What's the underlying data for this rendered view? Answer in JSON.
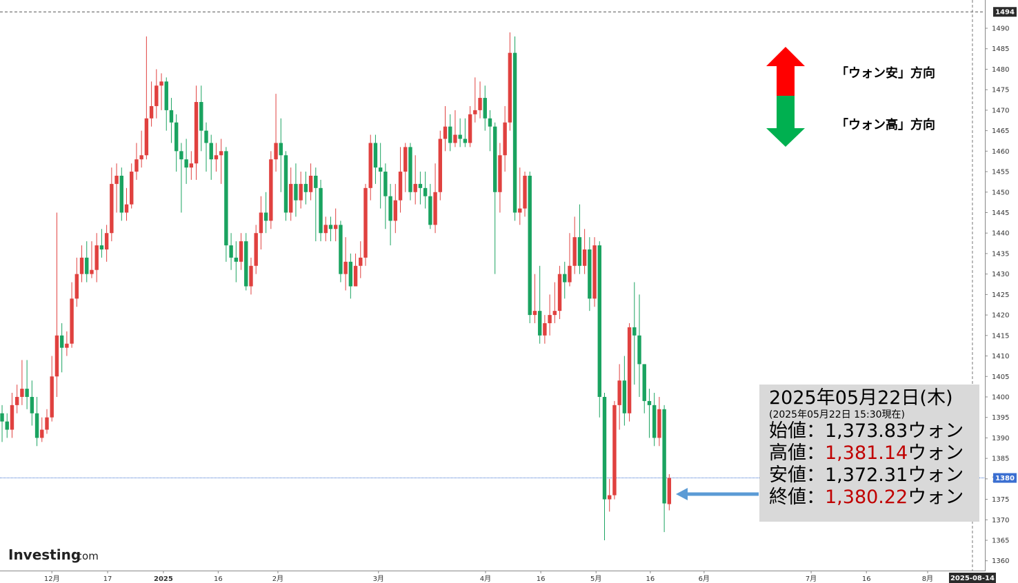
{
  "chart_data": {
    "type": "candlestick",
    "up_color": "#e0413f",
    "down_color": "#1aa360",
    "open": [
      1396,
      1394,
      1392,
      1398,
      1400,
      1402,
      1400,
      1396,
      1390,
      1392,
      1395,
      1405,
      1415,
      1412,
      1413,
      1424,
      1430,
      1434,
      1430,
      1431,
      1437,
      1436,
      1440,
      1452,
      1454,
      1445,
      1447,
      1455,
      1458,
      1459,
      1468,
      1471,
      1476,
      1477,
      1470,
      1467,
      1460,
      1458,
      1456,
      1457,
      1472,
      1465,
      1462,
      1458,
      1459,
      1460,
      1437,
      1434,
      1433,
      1438,
      1427,
      1432,
      1440,
      1445,
      1443,
      1458,
      1462,
      1459,
      1445,
      1452,
      1448,
      1452,
      1450,
      1454,
      1451,
      1440,
      1442,
      1441,
      1442,
      1430,
      1433,
      1427,
      1432,
      1434,
      1451,
      1462,
      1456,
      1455,
      1449,
      1443,
      1448,
      1455,
      1461,
      1450,
      1452,
      1451,
      1449,
      1442,
      1450,
      1463,
      1466,
      1462,
      1464,
      1463,
      1462,
      1469,
      1470,
      1473,
      1468,
      1466,
      1450,
      1459,
      1467,
      1484,
      1445,
      1446,
      1454,
      1420,
      1421,
      1415,
      1418,
      1420,
      1421,
      1430,
      1428,
      1432,
      1439,
      1432,
      1436,
      1424,
      1437,
      1400,
      1375,
      1376,
      1398,
      1404,
      1396,
      1417,
      1415,
      1408,
      1399,
      1398,
      1390,
      1397,
      1373.83
    ],
    "high": [
      1398,
      1396,
      1401,
      1403,
      1409,
      1409,
      1404,
      1400,
      1395,
      1397,
      1410,
      1445,
      1418,
      1416,
      1428,
      1434,
      1437,
      1438,
      1438,
      1440,
      1441,
      1442,
      1456,
      1457,
      1456,
      1451,
      1457,
      1462,
      1465,
      1488,
      1477,
      1480,
      1479,
      1478,
      1473,
      1469,
      1462,
      1463,
      1460,
      1476,
      1476,
      1467,
      1464,
      1462,
      1463,
      1461,
      1440,
      1438,
      1440,
      1440,
      1434,
      1442,
      1449,
      1450,
      1460,
      1474,
      1468,
      1460,
      1456,
      1457,
      1455,
      1455,
      1457,
      1456,
      1453,
      1444,
      1444,
      1446,
      1443,
      1439,
      1435,
      1435,
      1438,
      1452,
      1464,
      1464,
      1462,
      1457,
      1452,
      1452,
      1461,
      1462,
      1462,
      1459,
      1455,
      1455,
      1452,
      1457,
      1465,
      1471,
      1469,
      1470,
      1468,
      1468,
      1471,
      1478,
      1477,
      1476,
      1470,
      1467,
      1462,
      1471,
      1489,
      1488,
      1456,
      1455,
      1455,
      1430,
      1432,
      1420,
      1425,
      1428,
      1432,
      1433,
      1440,
      1444,
      1447,
      1441,
      1439,
      1439,
      1438,
      1401,
      1380,
      1399,
      1408,
      1410,
      1418,
      1428,
      1425,
      1408,
      1402,
      1401,
      1400,
      1398,
      1381.14
    ],
    "low": [
      1389,
      1390,
      1390,
      1396,
      1398,
      1397,
      1393,
      1388,
      1389,
      1391,
      1394,
      1400,
      1406,
      1410,
      1412,
      1422,
      1428,
      1428,
      1429,
      1428,
      1434,
      1433,
      1438,
      1445,
      1443,
      1443,
      1446,
      1453,
      1456,
      1458,
      1466,
      1468,
      1470,
      1465,
      1462,
      1455,
      1445,
      1452,
      1453,
      1453,
      1460,
      1455,
      1453,
      1455,
      1452,
      1433,
      1431,
      1428,
      1431,
      1426,
      1425,
      1430,
      1436,
      1440,
      1441,
      1455,
      1450,
      1443,
      1443,
      1444,
      1446,
      1447,
      1448,
      1438,
      1438,
      1438,
      1438,
      1438,
      1428,
      1426,
      1424,
      1428,
      1429,
      1432,
      1448,
      1452,
      1446,
      1441,
      1437,
      1440,
      1445,
      1450,
      1448,
      1447,
      1447,
      1446,
      1441,
      1440,
      1448,
      1460,
      1460,
      1461,
      1461,
      1461,
      1461,
      1467,
      1468,
      1465,
      1460,
      1430,
      1445,
      1455,
      1465,
      1443,
      1442,
      1444,
      1418,
      1418,
      1413,
      1413,
      1415,
      1418,
      1419,
      1424,
      1427,
      1430,
      1430,
      1430,
      1421,
      1422,
      1395,
      1365,
      1372,
      1375,
      1392,
      1393,
      1394,
      1403,
      1400,
      1396,
      1390,
      1388,
      1388,
      1367,
      1372.31
    ],
    "close": [
      1394,
      1392,
      1398,
      1400,
      1402,
      1400,
      1396,
      1390,
      1392,
      1395,
      1405,
      1415,
      1412,
      1413,
      1424,
      1430,
      1434,
      1430,
      1431,
      1437,
      1436,
      1440,
      1452,
      1454,
      1445,
      1447,
      1455,
      1458,
      1459,
      1468,
      1471,
      1476,
      1477,
      1470,
      1467,
      1460,
      1458,
      1456,
      1457,
      1472,
      1465,
      1462,
      1458,
      1459,
      1460,
      1437,
      1434,
      1433,
      1438,
      1427,
      1432,
      1440,
      1445,
      1443,
      1458,
      1462,
      1459,
      1445,
      1452,
      1448,
      1452,
      1450,
      1454,
      1451,
      1440,
      1442,
      1441,
      1442,
      1430,
      1433,
      1427,
      1432,
      1434,
      1451,
      1462,
      1456,
      1455,
      1449,
      1443,
      1448,
      1455,
      1461,
      1450,
      1452,
      1451,
      1449,
      1442,
      1450,
      1463,
      1466,
      1462,
      1464,
      1463,
      1462,
      1469,
      1470,
      1473,
      1468,
      1466,
      1450,
      1459,
      1467,
      1484,
      1445,
      1446,
      1454,
      1420,
      1421,
      1415,
      1418,
      1420,
      1421,
      1430,
      1428,
      1432,
      1439,
      1432,
      1436,
      1424,
      1437,
      1400,
      1375,
      1376,
      1398,
      1404,
      1396,
      1417,
      1415,
      1408,
      1399,
      1398,
      1390,
      1397,
      1374,
      1380.22
    ],
    "xlim": [
      -0.42,
      197.4
    ],
    "xticks": [
      {
        "value": 10,
        "label": "12月"
      },
      {
        "value": 21.2,
        "label": "17"
      },
      {
        "value": 32.4,
        "label": "2025"
      },
      {
        "value": 43.4,
        "label": "16"
      },
      {
        "value": 55.4,
        "label": "2月"
      },
      {
        "value": 75.6,
        "label": "3月"
      },
      {
        "value": 97.1,
        "label": "4月"
      },
      {
        "value": 108.2,
        "label": "16"
      },
      {
        "value": 119.3,
        "label": "5月"
      },
      {
        "value": 130.2,
        "label": "16"
      },
      {
        "value": 141,
        "label": "6月"
      },
      {
        "value": 162.5,
        "label": "7月"
      },
      {
        "value": 173.6,
        "label": "16"
      },
      {
        "value": 185.9,
        "label": "8月"
      }
    ],
    "cursor_x": {
      "value": 194.9,
      "label": "2025-08-14"
    },
    "ylim": [
      1357.6,
      1496.9
    ],
    "yticks": [
      1360,
      1365,
      1370,
      1375,
      1380,
      1385,
      1390,
      1395,
      1400,
      1405,
      1410,
      1415,
      1420,
      1425,
      1430,
      1435,
      1440,
      1445,
      1450,
      1455,
      1460,
      1465,
      1470,
      1475,
      1480,
      1485,
      1490
    ],
    "top_price": 1494,
    "last_price": {
      "value": 1380.22,
      "label": "1380"
    },
    "logo": "Investing",
    "logo_suffix": ".com",
    "legend": {
      "up": "「ウォン安」方向",
      "down": "「ウォン高」方向"
    },
    "info": {
      "date": "2025年05月22日(木)",
      "asof": "(2025年05月22日 15:30現在)",
      "rows": [
        {
          "label": "始値：",
          "value": "1,373.83",
          "unit": "ウォン"
        },
        {
          "label": "高値：",
          "value": "1,381.14",
          "unit": "ウォン"
        },
        {
          "label": "安値：",
          "value": "1,372.31",
          "unit": "ウォン"
        },
        {
          "label": "終値：",
          "value": "1,380.22",
          "unit": "ウォン"
        }
      ]
    }
  }
}
